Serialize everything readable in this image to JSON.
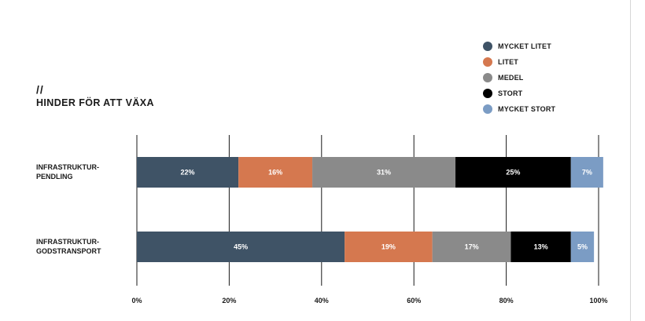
{
  "chart_data": {
    "type": "bar",
    "orientation": "horizontal",
    "stacked": true,
    "slashes": "//",
    "title": "HINDER FÖR ATT VÄXA",
    "categories": [
      [
        "INFRASTRUKTUR-",
        "PENDLING"
      ],
      [
        "INFRASTRUKTUR-",
        "GODSTRANSPORT"
      ]
    ],
    "series": [
      {
        "name": "MYCKET LITET",
        "color": "#3f5366",
        "values": [
          22,
          45
        ],
        "labels": [
          "22%",
          "45%"
        ]
      },
      {
        "name": "LITET",
        "color": "#d5784f",
        "values": [
          16,
          19
        ],
        "labels": [
          "16%",
          "19%"
        ]
      },
      {
        "name": "MEDEL",
        "color": "#8a8a8a",
        "values": [
          31,
          17
        ],
        "labels": [
          "31%",
          "17%"
        ]
      },
      {
        "name": "STORT",
        "color": "#000000",
        "values": [
          25,
          13
        ],
        "labels": [
          "25%",
          "13%"
        ]
      },
      {
        "name": "MYCKET STORT",
        "color": "#7b9cc4",
        "values": [
          7,
          5
        ],
        "labels": [
          "7%",
          "5%"
        ]
      }
    ],
    "xlim": [
      0,
      100
    ],
    "xticks": [
      0,
      20,
      40,
      60,
      80,
      100
    ],
    "xtick_labels": [
      "0%",
      "20%",
      "40%",
      "60%",
      "80%",
      "100%"
    ],
    "grid": true,
    "legend_position": "top-right"
  }
}
